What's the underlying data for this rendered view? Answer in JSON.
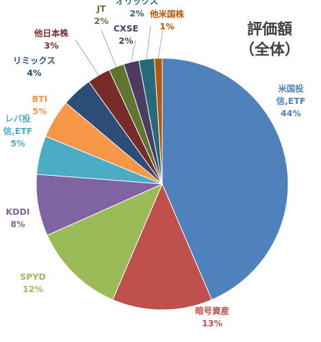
{
  "chart_data": {
    "type": "pie",
    "title": "評価額\n（全体）",
    "slices": [
      {
        "label": "米国投\n信,ETF",
        "value": 44,
        "display": "44%",
        "color": "#4f81bd",
        "label_color": "#4f81bd"
      },
      {
        "label": "暗号資産",
        "value": 13,
        "display": "13%",
        "color": "#c0504d",
        "label_color": "#c0504d"
      },
      {
        "label": "SPYD",
        "value": 12,
        "display": "12%",
        "color": "#9bbb59",
        "label_color": "#9bbb59"
      },
      {
        "label": "KDDI",
        "value": 8,
        "display": "8%",
        "color": "#8064a2",
        "label_color": "#8064a2"
      },
      {
        "label": "レバ投\n信,ETF",
        "value": 5,
        "display": "5%",
        "color": "#4bacc6",
        "label_color": "#4bacc6"
      },
      {
        "label": "BTI",
        "value": 5,
        "display": "5%",
        "color": "#f79646",
        "label_color": "#f79646"
      },
      {
        "label": "リミックス",
        "value": 4,
        "display": "4%",
        "color": "#2c4d75",
        "label_color": "#2c4d75"
      },
      {
        "label": "他日本株",
        "value": 3,
        "display": "3%",
        "color": "#772c2a",
        "label_color": "#772c2a"
      },
      {
        "label": "JT",
        "value": 2,
        "display": "2%",
        "color": "#5f7530",
        "label_color": "#5f7530"
      },
      {
        "label": "CXSE",
        "value": 2,
        "display": "2%",
        "color": "#4d3b62",
        "label_color": "#4d3b62"
      },
      {
        "label": "オリックス",
        "value": 2,
        "display": "2%",
        "color": "#276a7c",
        "label_color": "#276a7c"
      },
      {
        "label": "他米国株",
        "value": 1,
        "display": "1%",
        "color": "#b65708",
        "label_color": "#b65708"
      }
    ]
  }
}
